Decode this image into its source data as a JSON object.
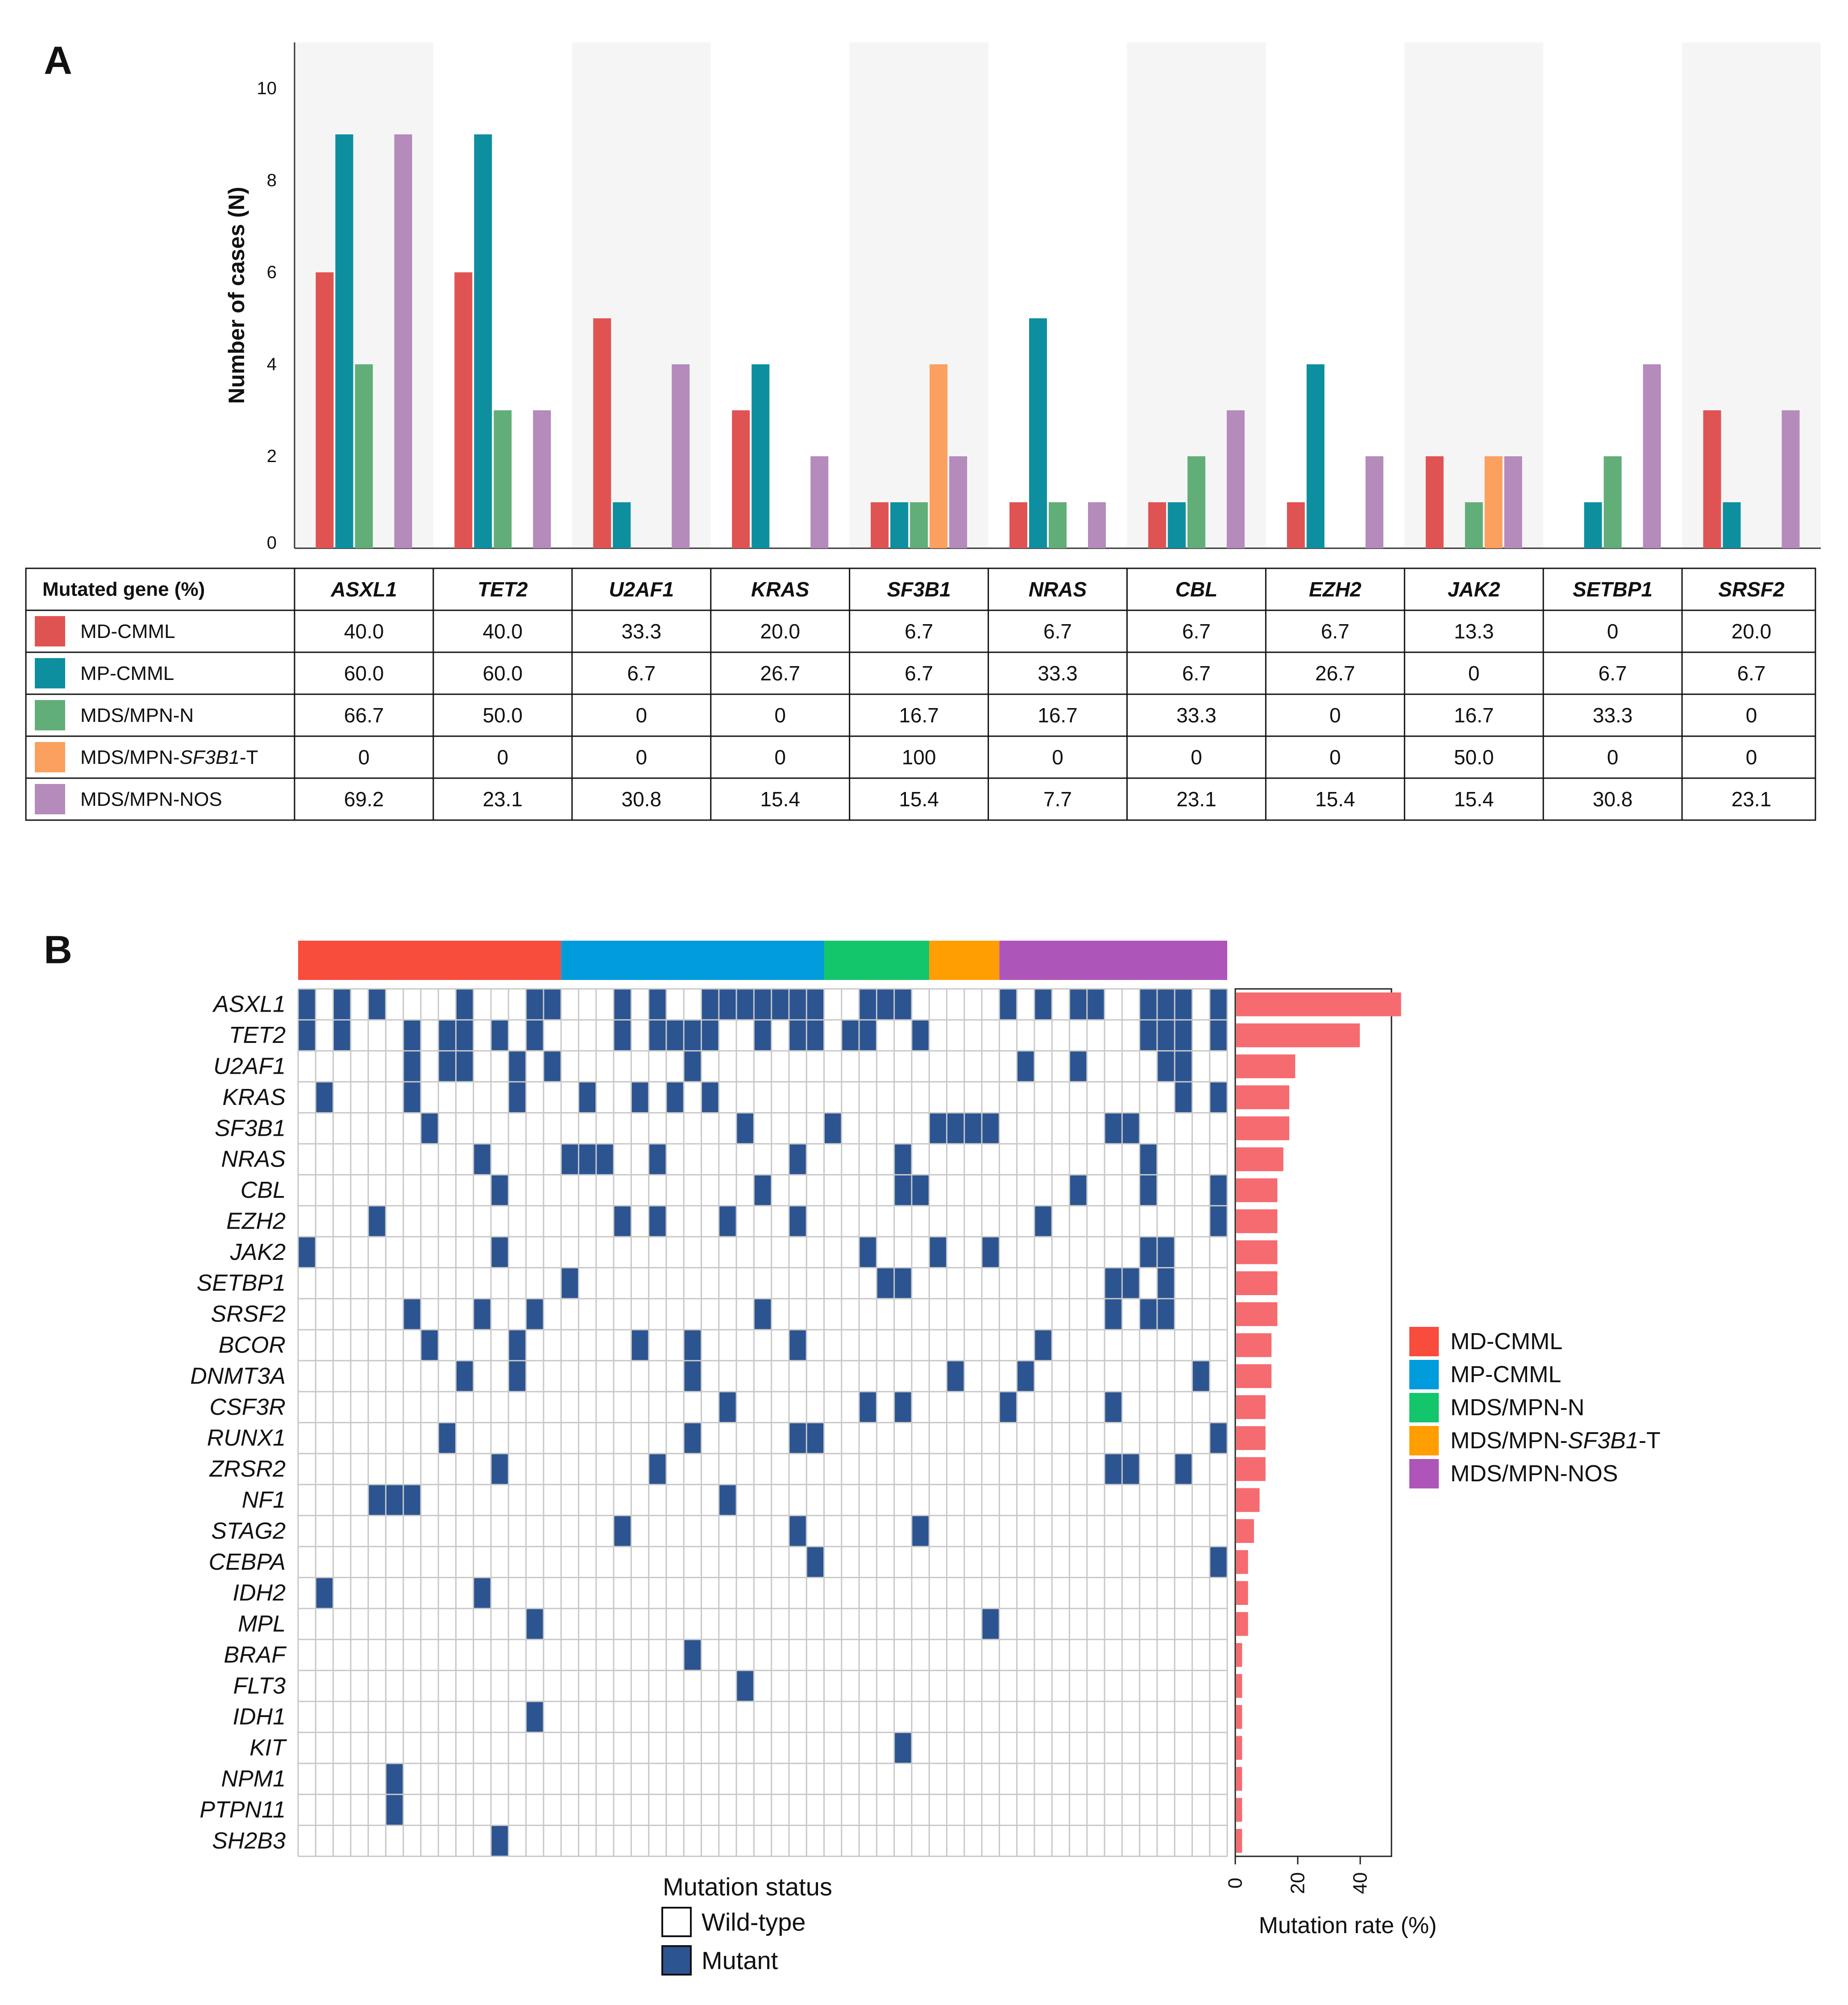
{
  "chart_data": [
    {
      "type": "bar",
      "panel_label": "A",
      "ylabel": "Number of cases (N)",
      "ylim": [
        0,
        11
      ],
      "yticks": [
        0,
        2,
        4,
        6,
        8,
        10
      ],
      "categories": [
        "ASXL1",
        "TET2",
        "U2AF1",
        "KRAS",
        "SF3B1",
        "NRAS",
        "CBL",
        "EZH2",
        "JAK2",
        "SETBP1",
        "SRSF2"
      ],
      "series": [
        {
          "name": "MD-CMML",
          "color": "#E05353",
          "values": [
            6,
            6,
            5,
            3,
            1,
            1,
            1,
            1,
            2,
            0,
            3
          ]
        },
        {
          "name": "MP-CMML",
          "color": "#0E8FA0",
          "values": [
            9,
            9,
            1,
            4,
            1,
            5,
            1,
            4,
            0,
            1,
            1
          ]
        },
        {
          "name": "MDS/MPN-N",
          "color": "#62AE78",
          "values": [
            4,
            3,
            0,
            0,
            1,
            1,
            2,
            0,
            1,
            2,
            0
          ]
        },
        {
          "name": "MDS/MPN-SF3B1-T",
          "color": "#FBA05E",
          "values": [
            0,
            0,
            0,
            0,
            4,
            0,
            0,
            0,
            2,
            0,
            0
          ]
        },
        {
          "name": "MDS/MPN-NOS",
          "color": "#B48BBB",
          "values": [
            9,
            3,
            4,
            2,
            2,
            1,
            3,
            2,
            2,
            4,
            3
          ]
        }
      ]
    },
    {
      "type": "table",
      "header": "Mutated gene (%)",
      "columns": [
        "ASXL1",
        "TET2",
        "U2AF1",
        "KRAS",
        "SF3B1",
        "NRAS",
        "CBL",
        "EZH2",
        "JAK2",
        "SETBP1",
        "SRSF2"
      ],
      "rows": [
        {
          "label_parts": [
            [
              "MD-CMML",
              false
            ]
          ],
          "color": "#E05353",
          "values": [
            "40.0",
            "40.0",
            "33.3",
            "20.0",
            "6.7",
            "6.7",
            "6.7",
            "6.7",
            "13.3",
            "0",
            "20.0"
          ]
        },
        {
          "label_parts": [
            [
              "MP-CMML",
              false
            ]
          ],
          "color": "#0E8FA0",
          "values": [
            "60.0",
            "60.0",
            "6.7",
            "26.7",
            "6.7",
            "33.3",
            "6.7",
            "26.7",
            "0",
            "6.7",
            "6.7"
          ]
        },
        {
          "label_parts": [
            [
              "MDS/MPN-N",
              false
            ]
          ],
          "color": "#62AE78",
          "values": [
            "66.7",
            "50.0",
            "0",
            "0",
            "16.7",
            "16.7",
            "33.3",
            "0",
            "16.7",
            "33.3",
            "0"
          ]
        },
        {
          "label_parts": [
            [
              "MDS/MPN-",
              false
            ],
            [
              "SF3B1",
              true
            ],
            [
              "-T",
              false
            ]
          ],
          "color": "#FBA05E",
          "values": [
            "0",
            "0",
            "0",
            "0",
            "100",
            "0",
            "0",
            "0",
            "50.0",
            "0",
            "0"
          ]
        },
        {
          "label_parts": [
            [
              "MDS/MPN-NOS",
              false
            ]
          ],
          "color": "#B48BBB",
          "values": [
            "69.2",
            "23.1",
            "30.8",
            "15.4",
            "15.4",
            "7.7",
            "23.1",
            "15.4",
            "15.4",
            "30.8",
            "23.1"
          ]
        }
      ]
    },
    {
      "type": "heatmap",
      "panel_label": "B",
      "genes": [
        "ASXL1",
        "TET2",
        "U2AF1",
        "KRAS",
        "SF3B1",
        "NRAS",
        "CBL",
        "EZH2",
        "JAK2",
        "SETBP1",
        "SRSF2",
        "BCOR",
        "DNMT3A",
        "CSF3R",
        "RUNX1",
        "ZRSR2",
        "NF1",
        "STAG2",
        "CEBPA",
        "IDH2",
        "MPL",
        "BRAF",
        "FLT3",
        "IDH1",
        "KIT",
        "NPM1",
        "PTPN11",
        "SH2B3"
      ],
      "groups": [
        {
          "name": "MD-CMML",
          "color": "#F84C3C",
          "count": 15
        },
        {
          "name": "MP-CMML",
          "color": "#009CDC",
          "count": 15
        },
        {
          "name": "MDS/MPN-N",
          "color": "#13C66B",
          "count": 6
        },
        {
          "name": "MDS/MPN-SF3B1-T",
          "color": "#FF9E00",
          "count": 4
        },
        {
          "name": "MDS/MPN-NOS",
          "color": "#AE55B9",
          "count": 13
        }
      ],
      "legend_labels": [
        [
          [
            "MD-CMML",
            false
          ]
        ],
        [
          [
            "MP-CMML",
            false
          ]
        ],
        [
          [
            "MDS/MPN-N",
            false
          ]
        ],
        [
          [
            "MDS/MPN-",
            false
          ],
          [
            "SF3B1",
            true
          ],
          [
            "-T",
            false
          ]
        ],
        [
          [
            "MDS/MPN-NOS",
            false
          ]
        ]
      ],
      "mutant_columns": [
        [
          0,
          2,
          4,
          9,
          13,
          14,
          18,
          20,
          23,
          24,
          25,
          26,
          27,
          28,
          29,
          32,
          33,
          34,
          40,
          42,
          44,
          45,
          48,
          49,
          50,
          52
        ],
        [
          0,
          2,
          6,
          8,
          9,
          11,
          13,
          18,
          20,
          21,
          22,
          23,
          26,
          28,
          29,
          31,
          32,
          35,
          48,
          49,
          50,
          52
        ],
        [
          6,
          8,
          9,
          12,
          14,
          22,
          41,
          44,
          49,
          50
        ],
        [
          1,
          6,
          12,
          16,
          19,
          21,
          23,
          50,
          52
        ],
        [
          7,
          25,
          30,
          36,
          37,
          38,
          39,
          46,
          47
        ],
        [
          10,
          15,
          16,
          17,
          20,
          28,
          34,
          48
        ],
        [
          11,
          26,
          34,
          35,
          44,
          48,
          52
        ],
        [
          4,
          18,
          20,
          24,
          28,
          42,
          52
        ],
        [
          0,
          11,
          32,
          36,
          39,
          48,
          49
        ],
        [
          15,
          33,
          34,
          46,
          47,
          49
        ],
        [
          6,
          10,
          13,
          26,
          46,
          48,
          49
        ],
        [
          7,
          12,
          19,
          22,
          28,
          42
        ],
        [
          9,
          12,
          22,
          37,
          41,
          51
        ],
        [
          24,
          32,
          34,
          40,
          46
        ],
        [
          8,
          22,
          28,
          29,
          52
        ],
        [
          11,
          20,
          46,
          47,
          50
        ],
        [
          4,
          5,
          6,
          24
        ],
        [
          18,
          28,
          35
        ],
        [
          29,
          52
        ],
        [
          1,
          10
        ],
        [
          13,
          39
        ],
        [
          22
        ],
        [
          25
        ],
        [
          13
        ],
        [
          34
        ],
        [
          5
        ],
        [
          5
        ],
        [
          11
        ]
      ],
      "mutation_status_title": "Mutation status",
      "wild_type_label": "Wild-type",
      "mutant_label": "Mutant",
      "mutant_color": "#2B5491",
      "rate_color": "#F56B6F",
      "rate_xlabel": "Mutation rate (%)",
      "rate_xticks": [
        0,
        20,
        40
      ],
      "rate_values": [
        52.8,
        39.6,
        18.9,
        17.0,
        17.0,
        15.1,
        13.2,
        13.2,
        13.2,
        13.2,
        13.2,
        11.3,
        11.3,
        9.4,
        9.4,
        9.4,
        7.5,
        5.7,
        3.8,
        3.8,
        3.8,
        1.9,
        1.9,
        1.9,
        1.9,
        1.9,
        1.9,
        1.9
      ]
    }
  ]
}
